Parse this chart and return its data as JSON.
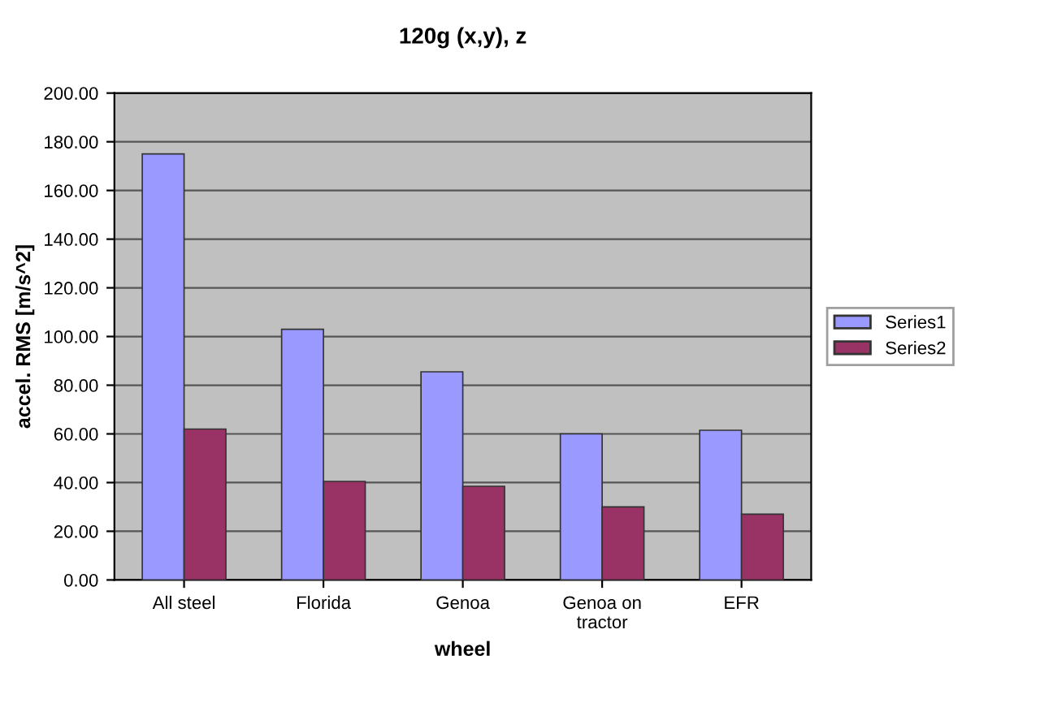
{
  "chart_data": {
    "type": "bar",
    "title": "120g (x,y), z",
    "xlabel": "wheel",
    "ylabel": "accel. RMS [m/s^2]",
    "categories": [
      "All steel",
      "Florida",
      "Genoa",
      "Genoa on\ntractor",
      "EFR"
    ],
    "series": [
      {
        "name": "Series1",
        "color": "#9999ff",
        "values": [
          175,
          103,
          85.5,
          60,
          61.5
        ]
      },
      {
        "name": "Series2",
        "color": "#993366",
        "values": [
          62,
          40.5,
          38.5,
          30,
          27
        ]
      }
    ],
    "ylim": [
      0,
      200
    ],
    "yticks": [
      {
        "value": 0,
        "label": "0.00"
      },
      {
        "value": 20,
        "label": "20.00"
      },
      {
        "value": 40,
        "label": "40.00"
      },
      {
        "value": 60,
        "label": "60.00"
      },
      {
        "value": 80,
        "label": "80.00"
      },
      {
        "value": 100,
        "label": "100.00"
      },
      {
        "value": 120,
        "label": "120.00"
      },
      {
        "value": 140,
        "label": "140.00"
      },
      {
        "value": 160,
        "label": "160.00"
      },
      {
        "value": 180,
        "label": "180.00"
      },
      {
        "value": 200,
        "label": "200.00"
      }
    ],
    "grid": "y",
    "legend": "right"
  }
}
